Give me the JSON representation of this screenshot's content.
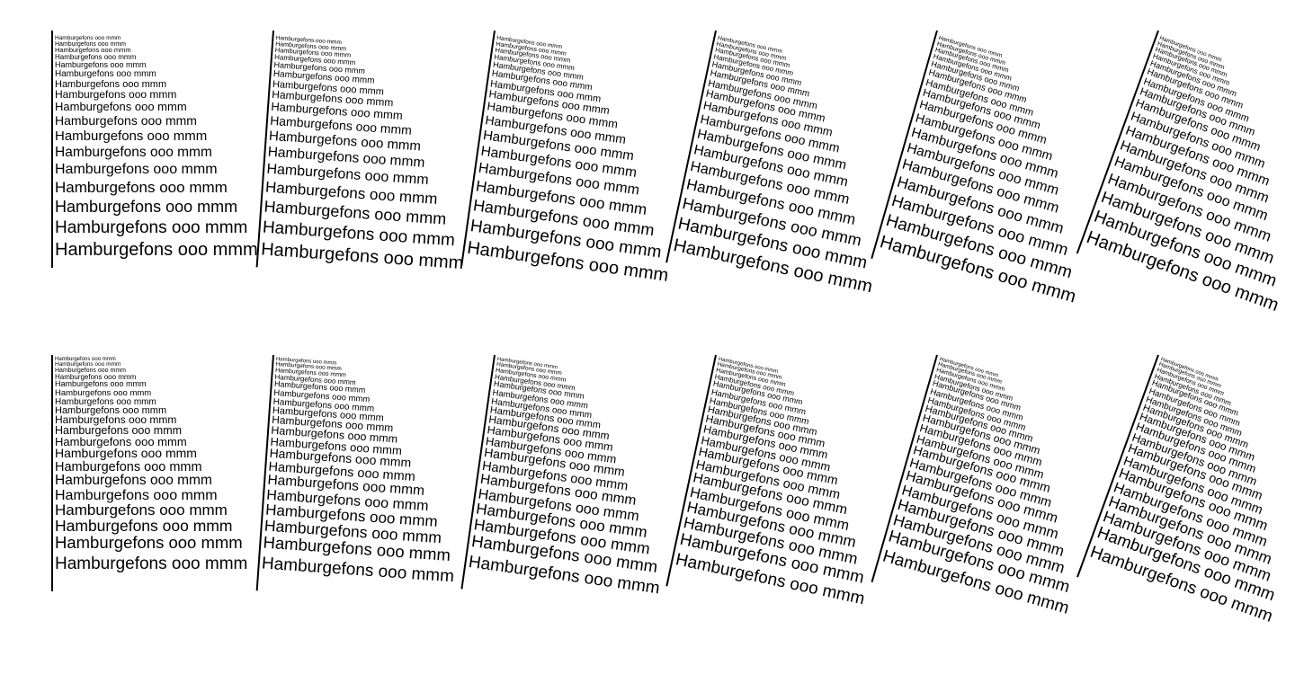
{
  "sample_text": "Hamburgefons ooo mmm",
  "colors": {
    "background": "#ffffff",
    "text": "#000000"
  },
  "rows": [
    {
      "panels": [
        {
          "rotation_deg": 0
        },
        {
          "rotation_deg": 4
        },
        {
          "rotation_deg": 8
        },
        {
          "rotation_deg": 12
        },
        {
          "rotation_deg": 16
        },
        {
          "rotation_deg": 20
        }
      ]
    },
    {
      "panels": [
        {
          "rotation_deg": 0
        },
        {
          "rotation_deg": 4
        },
        {
          "rotation_deg": 8
        },
        {
          "rotation_deg": 12
        },
        {
          "rotation_deg": 16
        },
        {
          "rotation_deg": 20
        }
      ]
    }
  ]
}
